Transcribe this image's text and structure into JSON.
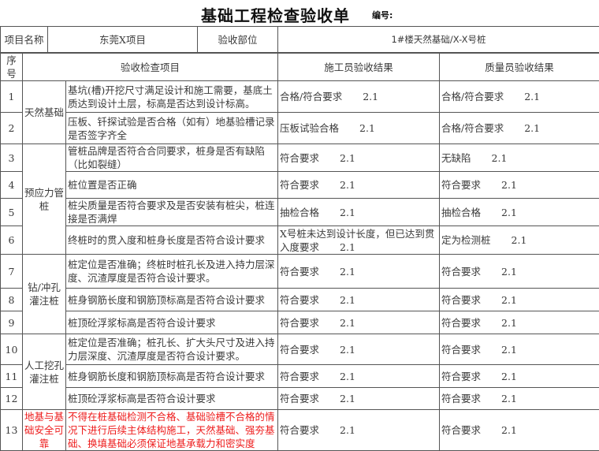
{
  "title": "基础工程检查验收单",
  "code_label": "编号:",
  "info": {
    "project_name_label": "项目名称",
    "project_name": "东莞X项目",
    "location_label": "验收部位",
    "location": "1#楼天然基础/X-X号桩"
  },
  "headers": {
    "no": "序号",
    "item": "验收检查项目",
    "construction": "施工员验收结果",
    "quality": "质量员验收结果"
  },
  "categories": [
    {
      "label": "天然基础",
      "rows": [
        0,
        1
      ]
    },
    {
      "label": "预应力管桩",
      "rows": [
        2,
        3,
        4,
        5
      ]
    },
    {
      "label": "钻/冲孔灌注桩",
      "rows": [
        6,
        7,
        8
      ]
    },
    {
      "label": "人工挖孔灌注桩",
      "rows": [
        9,
        10,
        11
      ]
    },
    {
      "label": "地基与基础安全可靠",
      "rows": [
        12
      ],
      "highlight": "#ee1c1c"
    }
  ],
  "rows": [
    {
      "no": "1",
      "item": "基坑(槽)开挖尺寸满足设计和施工需要，基底土质达到设计土层，标高是否达到设计标高。",
      "construction": {
        "text": "合格/符合要求",
        "code": "2.1"
      },
      "quality": {
        "text": "合格/符合要求",
        "code": "2.1"
      }
    },
    {
      "no": "2",
      "item": "压板、钎探试验是否合格（如有）地基验槽记录是否签字齐全",
      "construction": {
        "text": "压板试验合格",
        "code": "2.1"
      },
      "quality": {
        "text": "合格/符合要求",
        "code": "2.1"
      }
    },
    {
      "no": "3",
      "item": "管桩品牌是否符合合同要求，桩身是否有缺陷（比如裂缝）",
      "construction": {
        "text": "符合要求",
        "code": "2.1"
      },
      "quality": {
        "text": "无缺陷",
        "code": "2.1"
      }
    },
    {
      "no": "4",
      "item": "桩位置是否正确",
      "construction": {
        "text": "符合要求",
        "code": "2.1"
      },
      "quality": {
        "text": "符合要求",
        "code": "2.1"
      }
    },
    {
      "no": "5",
      "item": "桩尖质量是否符合要求及是否安装有桩尖，桩连接是否满焊",
      "construction": {
        "text": "抽检合格",
        "code": "2.1"
      },
      "quality": {
        "text": "抽检合格",
        "code": "2.1"
      }
    },
    {
      "no": "6",
      "item": "终桩时的贯入度和桩身长度是否符合设计要求",
      "construction": {
        "text": "X号桩未达到设计长度，但已达到贯入度要求",
        "code": "2.1"
      },
      "quality": {
        "text": "定为检测桩",
        "code": "2.1"
      }
    },
    {
      "no": "7",
      "item": "桩定位是否准确；终桩时桩孔长及进入持力层深度、沉渣厚度是否符合设计要求。",
      "construction": {
        "text": "符合要求",
        "code": "2.1"
      },
      "quality": {
        "text": "符合要求",
        "code": "2.1"
      }
    },
    {
      "no": "8",
      "item": "桩身钢筋长度和钢筋顶标高是否符合设计要求",
      "construction": {
        "text": "符合要求",
        "code": "2.1"
      },
      "quality": {
        "text": "符合要求",
        "code": "2.1"
      }
    },
    {
      "no": "9",
      "item": "桩顶砼浮浆标高是否符合设计要求",
      "construction": {
        "text": "符合要求",
        "code": "2.1"
      },
      "quality": {
        "text": "符合要求",
        "code": "2.1"
      }
    },
    {
      "no": "10",
      "item": "桩定位是否准确；桩孔长、扩大头尺寸及进入持力层深度、沉渣厚度是否符合设计要求。",
      "construction": {
        "text": "符合要求",
        "code": "2.1"
      },
      "quality": {
        "text": "符合要求",
        "code": "2.1"
      }
    },
    {
      "no": "11",
      "item": "桩身钢筋长度和钢筋顶标高是否符合设计要求",
      "construction": {
        "text": "符合要求",
        "code": "2.1"
      },
      "quality": {
        "text": "符合要求",
        "code": "2.1"
      }
    },
    {
      "no": "12",
      "item": "桩顶砼浮浆标高是否符合设计要求",
      "construction": {
        "text": "符合要求",
        "code": "2.1"
      },
      "quality": {
        "text": "符合要求",
        "code": "2.1"
      }
    },
    {
      "no": "13",
      "item": "不得在桩基础检测不合格、基础验槽不合格的情况下进行后续主体结构施工，天然基础、强夯基础、换填基础必须保证地基承载力和密实度",
      "construction": {
        "text": "符合要求",
        "code": "2.1"
      },
      "quality": {
        "text": "符合要求",
        "code": "2.1"
      },
      "highlight": "#ee1c1c"
    }
  ]
}
